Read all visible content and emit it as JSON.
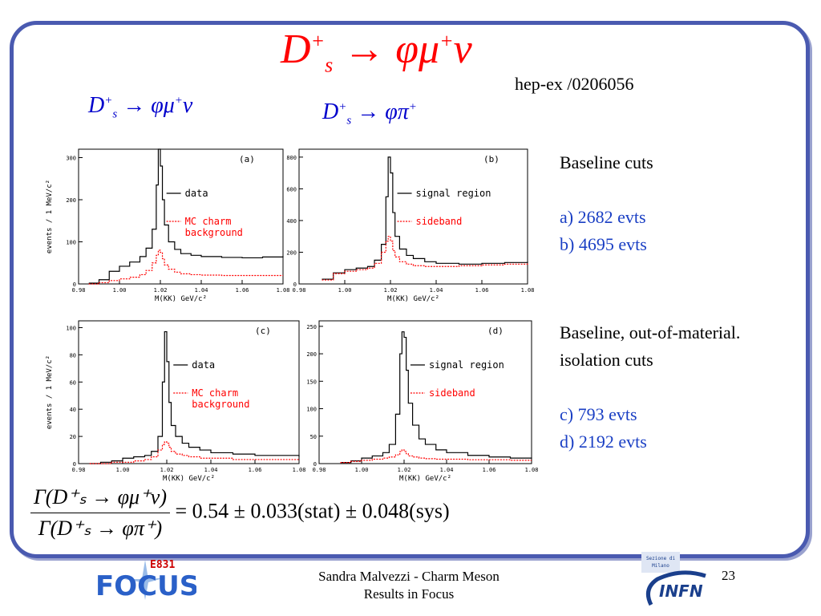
{
  "slide": {
    "title_main": "D",
    "title_sup": "+",
    "title_sub": "s",
    "title_rest": "→ φμ",
    "title_rest_sup": "+",
    "title_end": "ν",
    "reference": "hep-ex /0206056",
    "left_label": {
      "base": "D",
      "sup": "+",
      "sub": "s",
      "rest": "→ φμ",
      "rest_sup": "+",
      "end": "ν"
    },
    "right_label": {
      "base": "D",
      "sup": "+",
      "sub": "s",
      "rest": "→ φπ",
      "rest_sup": "+"
    },
    "notes": {
      "baseline_heading": "Baseline cuts",
      "baseline_a": "a) 2682 evts",
      "baseline_b": "b) 4695 evts",
      "iso_heading_1": "Baseline, out-of-material.",
      "iso_heading_2": "isolation cuts",
      "iso_c": "c) 793 evts",
      "iso_d": "d) 2192 evts"
    },
    "formula": {
      "numerator": "Γ(D⁺ₛ → φμ⁺ν)",
      "denominator": "Γ(D⁺ₛ → φπ⁺)",
      "result": "= 0.54 ± 0.033(stat) ± 0.048(sys)"
    },
    "footer": {
      "line1": "Sandra Malvezzi - Charm Meson",
      "line2": "Results  in Focus"
    },
    "page_number": "23",
    "logo_left": {
      "tag": "E831",
      "name": "FOCUS"
    },
    "logo_right": {
      "small1": "Sezione di",
      "small2": "Milano",
      "name": "INFN"
    },
    "colors": {
      "frame": "#4a5ab0",
      "title": "#ff0000",
      "label": "#0000cc",
      "note": "#1a3fc4",
      "data": "#000000",
      "mc": "#ff0000"
    }
  },
  "chart_data": [
    {
      "type": "line",
      "panel": "(a)",
      "xlabel": "M(KK)  GeV/c²",
      "ylabel": "events / 1 MeV/c²",
      "xlim": [
        0.98,
        1.08
      ],
      "ylim": [
        0,
        320
      ],
      "xticks": [
        "0.98",
        "1.00",
        "1.02",
        "1.04",
        "1.06",
        "1.08"
      ],
      "yticks": [
        "0",
        "100",
        "200",
        "300"
      ],
      "x": [
        0.985,
        0.99,
        0.995,
        1.0,
        1.005,
        1.01,
        1.013,
        1.016,
        1.018,
        1.019,
        1.02,
        1.021,
        1.022,
        1.024,
        1.027,
        1.03,
        1.035,
        1.04,
        1.05,
        1.06,
        1.07,
        1.08
      ],
      "series": [
        {
          "name": "data",
          "values": [
            2,
            10,
            30,
            42,
            52,
            65,
            85,
            130,
            235,
            320,
            280,
            200,
            140,
            100,
            82,
            72,
            68,
            65,
            63,
            62,
            64,
            66
          ]
        },
        {
          "name": "MC charm background",
          "values": [
            0,
            3,
            8,
            12,
            16,
            22,
            32,
            50,
            68,
            80,
            75,
            60,
            45,
            35,
            28,
            24,
            22,
            21,
            20,
            20,
            20,
            20
          ]
        }
      ]
    },
    {
      "type": "line",
      "panel": "(b)",
      "xlabel": "M(KK)  GeV/c²",
      "ylabel": "",
      "xlim": [
        0.98,
        1.08
      ],
      "ylim": [
        0,
        850
      ],
      "xticks": [
        "0.98",
        "1.00",
        "1.02",
        "1.04",
        "1.06",
        "1.08"
      ],
      "yticks": [
        "0",
        "200",
        "400",
        "600",
        "800"
      ],
      "x": [
        0.99,
        0.995,
        1.0,
        1.005,
        1.01,
        1.013,
        1.016,
        1.018,
        1.019,
        1.02,
        1.021,
        1.022,
        1.024,
        1.027,
        1.03,
        1.035,
        1.04,
        1.05,
        1.06,
        1.07,
        1.08
      ],
      "series": [
        {
          "name": "signal region",
          "values": [
            30,
            70,
            90,
            100,
            110,
            150,
            250,
            550,
            800,
            700,
            450,
            300,
            220,
            180,
            160,
            140,
            130,
            125,
            130,
            135,
            140
          ]
        },
        {
          "name": "sideband",
          "values": [
            25,
            65,
            80,
            90,
            100,
            130,
            200,
            270,
            300,
            270,
            210,
            170,
            140,
            125,
            115,
            110,
            110,
            115,
            120,
            125,
            130
          ]
        }
      ]
    },
    {
      "type": "line",
      "panel": "(c)",
      "xlabel": "M(KK)  GeV/c²",
      "ylabel": "events / 1 MeV/c²",
      "xlim": [
        0.98,
        1.08
      ],
      "ylim": [
        0,
        105
      ],
      "xticks": [
        "0.98",
        "1.00",
        "1.02",
        "1.04",
        "1.06",
        "1.08"
      ],
      "yticks": [
        "0",
        "20",
        "40",
        "60",
        "80",
        "100"
      ],
      "x": [
        0.985,
        0.99,
        0.995,
        1.0,
        1.005,
        1.01,
        1.013,
        1.016,
        1.018,
        1.019,
        1.02,
        1.021,
        1.022,
        1.024,
        1.027,
        1.03,
        1.035,
        1.04,
        1.05,
        1.06,
        1.07,
        1.08
      ],
      "series": [
        {
          "name": "data",
          "values": [
            0,
            1,
            2,
            4,
            5,
            6,
            9,
            20,
            60,
            97,
            75,
            45,
            28,
            20,
            15,
            12,
            10,
            8,
            7,
            6,
            6,
            5
          ]
        },
        {
          "name": "MC charm background",
          "values": [
            0,
            0,
            1,
            1,
            2,
            3,
            5,
            10,
            14,
            16,
            15,
            12,
            9,
            7,
            6,
            5,
            4,
            4,
            3,
            3,
            3,
            3
          ]
        }
      ]
    },
    {
      "type": "line",
      "panel": "(d)",
      "xlabel": "M(KK)  GeV/c²",
      "ylabel": "",
      "xlim": [
        0.98,
        1.08
      ],
      "ylim": [
        0,
        260
      ],
      "xticks": [
        "0.98",
        "1.00",
        "1.02",
        "1.04",
        "1.06",
        "1.08"
      ],
      "yticks": [
        "0",
        "50",
        "100",
        "150",
        "200",
        "250"
      ],
      "x": [
        0.99,
        0.995,
        1.0,
        1.005,
        1.01,
        1.013,
        1.016,
        1.018,
        1.019,
        1.02,
        1.021,
        1.022,
        1.024,
        1.027,
        1.03,
        1.035,
        1.04,
        1.05,
        1.06,
        1.07,
        1.08
      ],
      "series": [
        {
          "name": "signal region",
          "values": [
            2,
            5,
            10,
            14,
            20,
            35,
            90,
            200,
            240,
            230,
            170,
            110,
            70,
            45,
            35,
            25,
            20,
            15,
            12,
            10,
            9
          ]
        },
        {
          "name": "sideband",
          "values": [
            2,
            4,
            6,
            8,
            10,
            12,
            16,
            22,
            25,
            22,
            18,
            14,
            12,
            10,
            9,
            8,
            8,
            7,
            7,
            6,
            6
          ]
        }
      ]
    }
  ]
}
